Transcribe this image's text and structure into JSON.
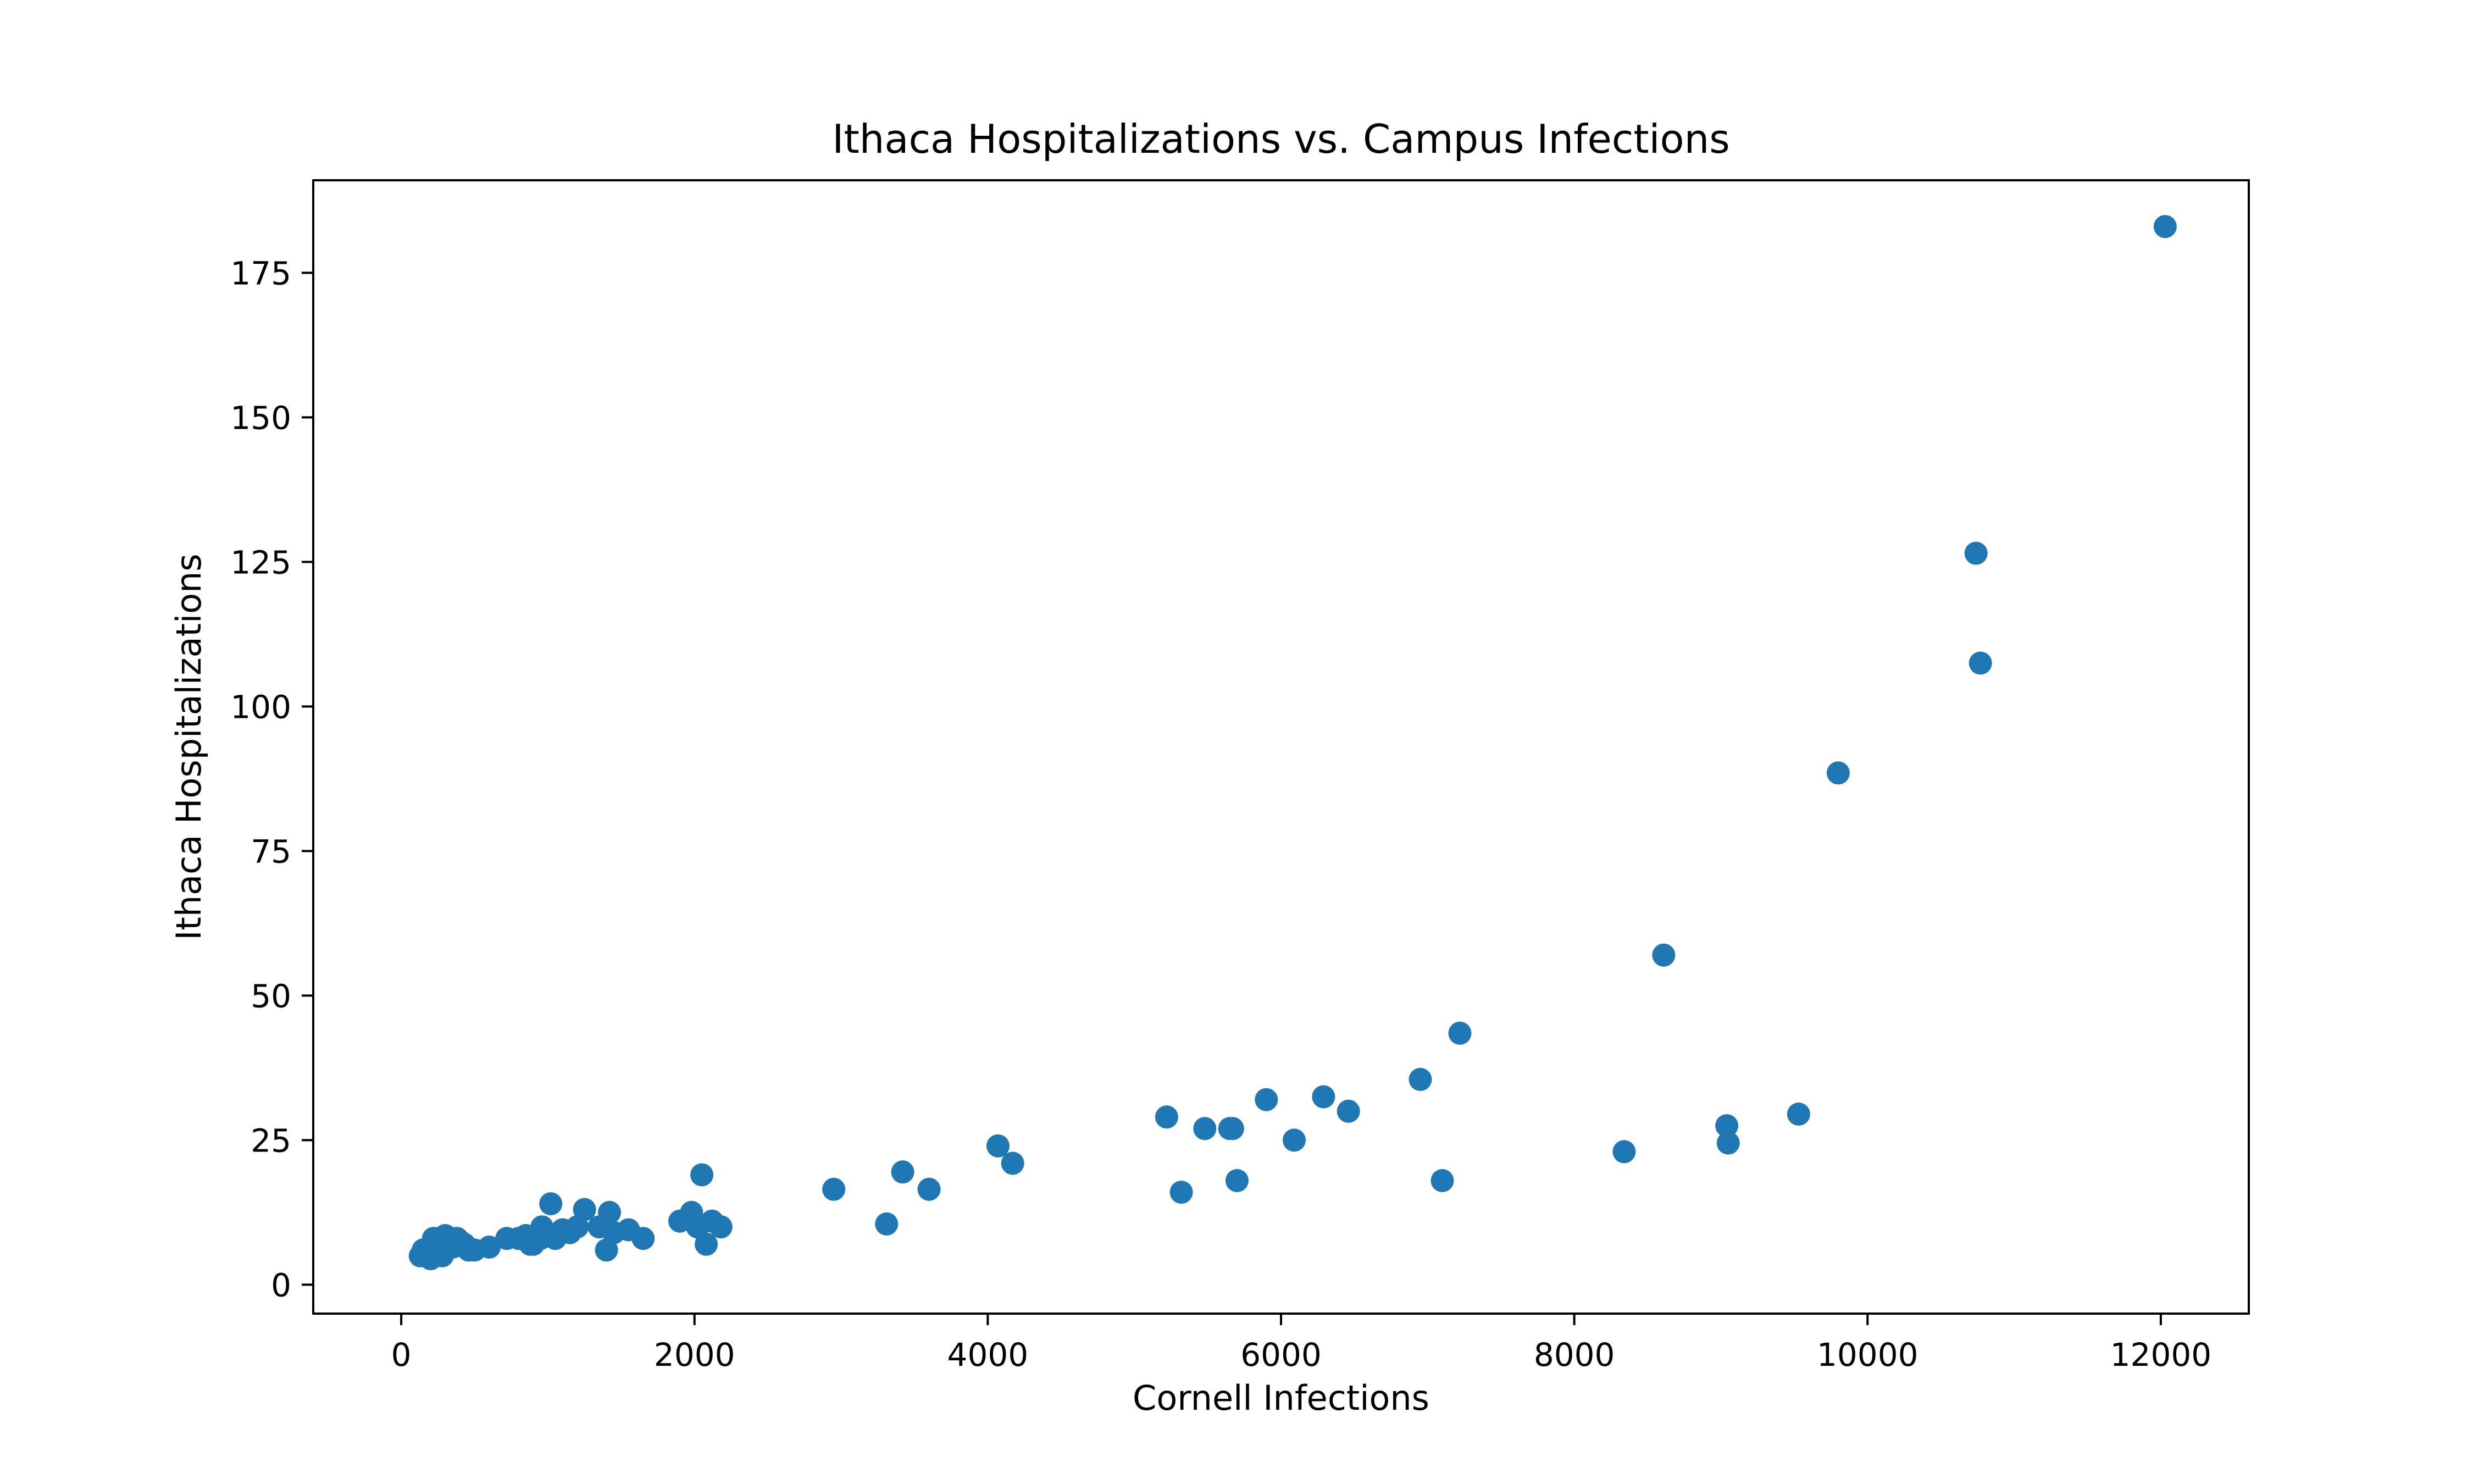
{
  "colors": {
    "marker": "#1f77b4",
    "axes": "#000000",
    "background": "#ffffff"
  },
  "chart_data": {
    "type": "scatter",
    "title": "Ithaca Hospitalizations vs. Campus Infections",
    "xlabel": "Cornell Infections",
    "ylabel": "Ithaca Hospitalizations",
    "xlim": [
      -600,
      12600
    ],
    "ylim": [
      -5,
      191
    ],
    "xticks": [
      0,
      2000,
      4000,
      6000,
      8000,
      10000,
      12000
    ],
    "xtick_labels": [
      "0",
      "2000",
      "4000",
      "6000",
      "8000",
      "10000",
      "12000"
    ],
    "yticks": [
      0,
      25,
      50,
      75,
      100,
      125,
      150,
      175
    ],
    "ytick_labels": [
      "0",
      "25",
      "50",
      "75",
      "100",
      "125",
      "150",
      "175"
    ],
    "grid": false,
    "legend": "none",
    "series": [
      {
        "points": [
          [
            130,
            5
          ],
          [
            150,
            6
          ],
          [
            180,
            5
          ],
          [
            200,
            4.5
          ],
          [
            220,
            8
          ],
          [
            240,
            6
          ],
          [
            260,
            7
          ],
          [
            280,
            5
          ],
          [
            300,
            8.5
          ],
          [
            320,
            7
          ],
          [
            350,
            6.5
          ],
          [
            380,
            8
          ],
          [
            400,
            7.5
          ],
          [
            430,
            7
          ],
          [
            460,
            6
          ],
          [
            500,
            6
          ],
          [
            600,
            6.5
          ],
          [
            720,
            8
          ],
          [
            800,
            8
          ],
          [
            850,
            8.5
          ],
          [
            880,
            7
          ],
          [
            900,
            7
          ],
          [
            950,
            8
          ],
          [
            960,
            10
          ],
          [
            1000,
            8.5
          ],
          [
            1020,
            14
          ],
          [
            1050,
            8
          ],
          [
            1100,
            9.5
          ],
          [
            1150,
            9
          ],
          [
            1200,
            10
          ],
          [
            1250,
            13
          ],
          [
            1350,
            10
          ],
          [
            1400,
            6
          ],
          [
            1420,
            12.5
          ],
          [
            1450,
            9
          ],
          [
            1550,
            9.5
          ],
          [
            1650,
            8
          ],
          [
            1900,
            11
          ],
          [
            1980,
            12.5
          ],
          [
            2020,
            10
          ],
          [
            2050,
            19
          ],
          [
            2080,
            7
          ],
          [
            2120,
            11
          ],
          [
            2180,
            10
          ],
          [
            2950,
            16.5
          ],
          [
            3310,
            10.5
          ],
          [
            3420,
            19.5
          ],
          [
            3600,
            16.5
          ],
          [
            4070,
            24
          ],
          [
            4170,
            21
          ],
          [
            5220,
            29
          ],
          [
            5320,
            16
          ],
          [
            5480,
            27
          ],
          [
            5650,
            27
          ],
          [
            5670,
            27
          ],
          [
            5700,
            18
          ],
          [
            5900,
            32
          ],
          [
            6090,
            25
          ],
          [
            6290,
            32.5
          ],
          [
            6460,
            30
          ],
          [
            6950,
            35.5
          ],
          [
            7100,
            18
          ],
          [
            7220,
            43.5
          ],
          [
            8340,
            23
          ],
          [
            8610,
            57
          ],
          [
            9040,
            27.5
          ],
          [
            9050,
            24.5
          ],
          [
            9530,
            29.5
          ],
          [
            9800,
            88.5
          ],
          [
            10740,
            126.5
          ],
          [
            10770,
            107.5
          ],
          [
            12030,
            183
          ]
        ]
      }
    ]
  }
}
